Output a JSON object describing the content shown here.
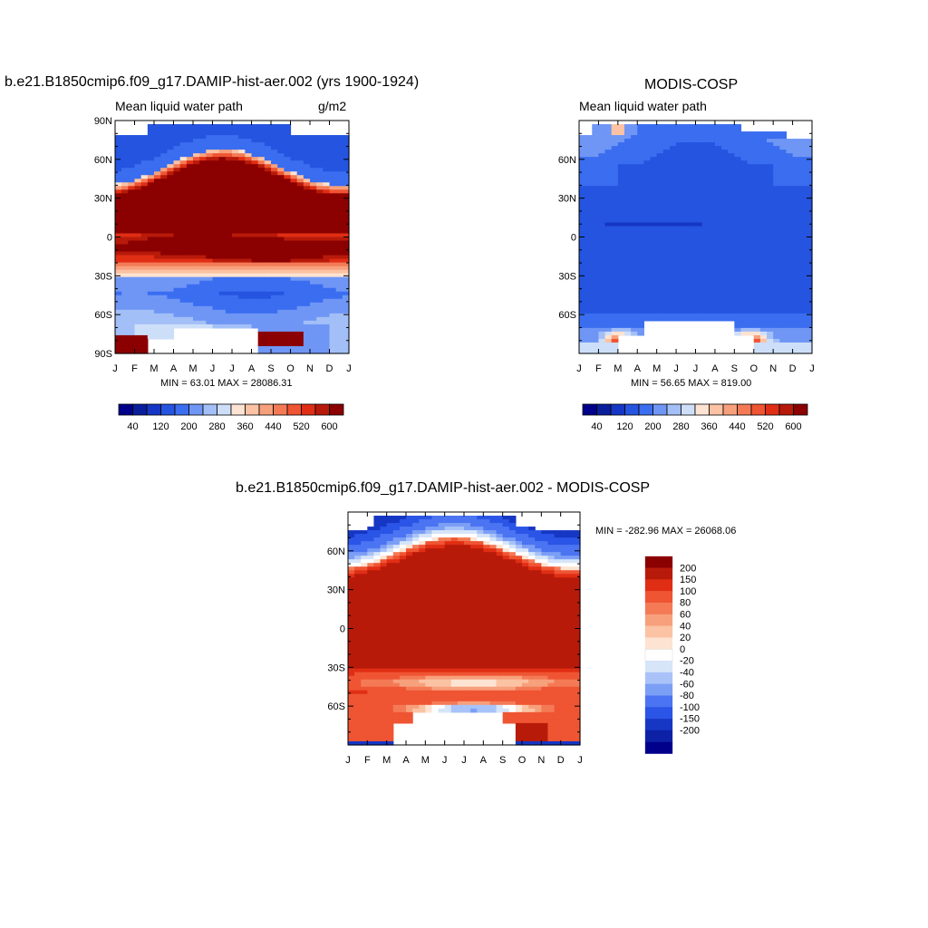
{
  "colors": {
    "seq": [
      "#00008b",
      "#0a1e9c",
      "#1636c4",
      "#2454e0",
      "#3a6df0",
      "#6f96f5",
      "#a3bff7",
      "#cddff8",
      "#fde3d1",
      "#fbc2a3",
      "#f7a07c",
      "#f47a56",
      "#ef5433",
      "#e02e14",
      "#b81a0a",
      "#8b0000"
    ],
    "div": [
      "#00008b",
      "#0c21a6",
      "#1636c4",
      "#2a55e6",
      "#4a74f2",
      "#7c9ff6",
      "#a9c3f8",
      "#d6e5f8",
      "#ffffff",
      "#fde3d1",
      "#fbc2a3",
      "#f7a07c",
      "#f47a56",
      "#ef5433",
      "#e02e14",
      "#b81a0a",
      "#8b0000"
    ]
  },
  "chart_data": [
    {
      "type": "heatmap",
      "title": "b.e21.B1850cmip6.f09_g17.DAMIP-hist-aer.002 (yrs 1900-1924)",
      "subtitle": "Mean liquid water path",
      "units": "g/m2",
      "minmax": "MIN =  63.01 MAX = 28086.31",
      "x_ticks": [
        "J",
        "F",
        "M",
        "A",
        "M",
        "J",
        "J",
        "A",
        "S",
        "O",
        "N",
        "D",
        "J"
      ],
      "y_ticks": [
        "90N",
        "60N",
        "30N",
        "0",
        "30S",
        "60S",
        "90S"
      ],
      "y_tick_values": [
        90,
        60,
        30,
        0,
        -30,
        -60,
        -90
      ],
      "ylim": [
        -90,
        90
      ],
      "colorbar_labels": [
        "40",
        "120",
        "200",
        "280",
        "360",
        "440",
        "520",
        "600"
      ],
      "levels": [
        20,
        40,
        80,
        120,
        160,
        200,
        240,
        280,
        320,
        360,
        400,
        440,
        480,
        520,
        560,
        600
      ],
      "field": "model"
    },
    {
      "type": "heatmap",
      "title": "MODIS-COSP",
      "subtitle": "Mean liquid water path",
      "units": "",
      "minmax": "MIN =  56.65 MAX = 819.00",
      "x_ticks": [
        "J",
        "F",
        "M",
        "A",
        "M",
        "J",
        "J",
        "A",
        "S",
        "O",
        "N",
        "D",
        "J"
      ],
      "y_ticks": [
        "60N",
        "30N",
        "0",
        "30S",
        "60S"
      ],
      "y_tick_values": [
        60,
        30,
        0,
        -30,
        -60
      ],
      "ylim": [
        -90,
        90
      ],
      "colorbar_labels": [
        "40",
        "120",
        "200",
        "280",
        "360",
        "440",
        "520",
        "600"
      ],
      "levels": [
        20,
        40,
        80,
        120,
        160,
        200,
        240,
        280,
        320,
        360,
        400,
        440,
        480,
        520,
        560,
        600
      ],
      "field": "obs"
    },
    {
      "type": "heatmap",
      "title": "b.e21.B1850cmip6.f09_g17.DAMIP-hist-aer.002 - MODIS-COSP",
      "subtitle": "",
      "units": "",
      "minmax": "MIN = -282.96 MAX = 26068.06",
      "x_ticks": [
        "J",
        "F",
        "M",
        "A",
        "M",
        "J",
        "J",
        "A",
        "S",
        "O",
        "N",
        "D",
        "J"
      ],
      "y_ticks": [
        "60N",
        "30N",
        "0",
        "30S",
        "60S"
      ],
      "y_tick_values": [
        60,
        30,
        0,
        -30,
        -60
      ],
      "ylim": [
        -90,
        90
      ],
      "colorbar_labels": [
        "200",
        "150",
        "100",
        "80",
        "60",
        "40",
        "20",
        "0",
        "-20",
        "-40",
        "-60",
        "-80",
        "-100",
        "-150",
        "-200"
      ],
      "levels": [
        -200,
        -150,
        -100,
        -80,
        -60,
        -40,
        -20,
        0,
        20,
        40,
        60,
        80,
        100,
        150,
        200
      ],
      "field": "diff"
    }
  ]
}
